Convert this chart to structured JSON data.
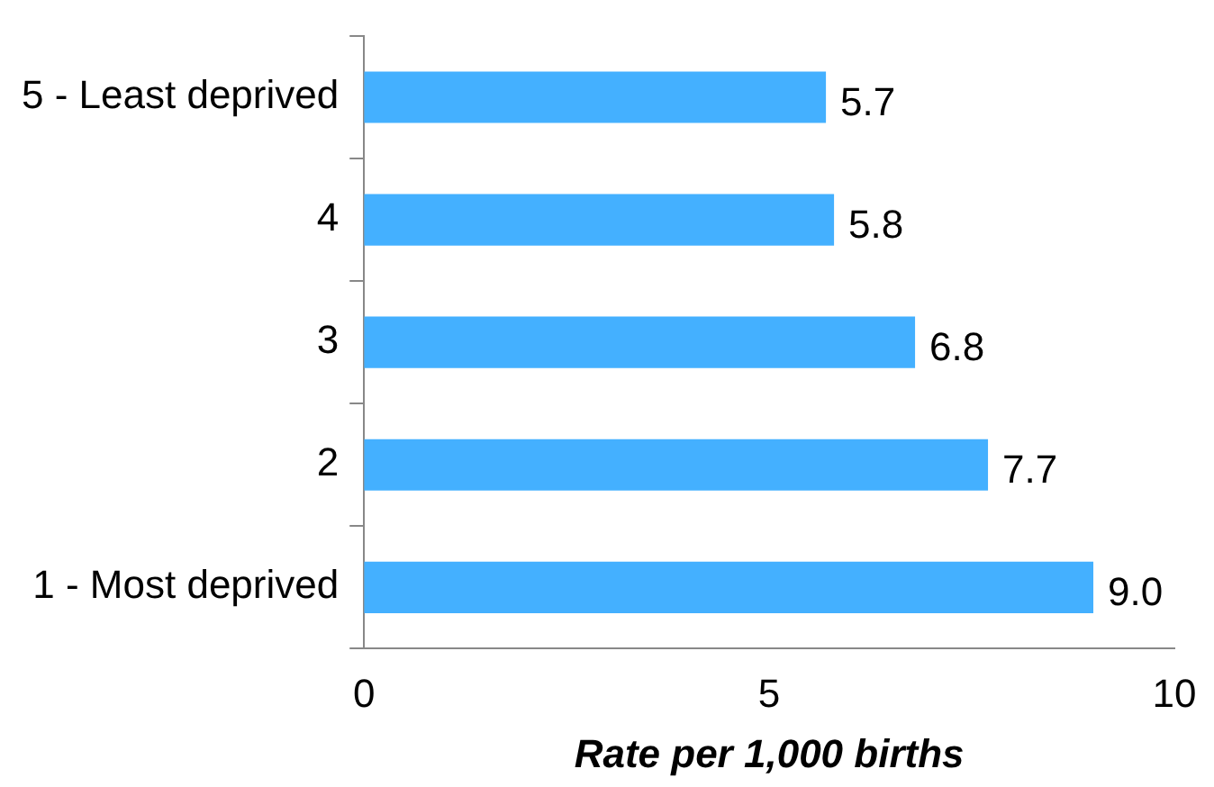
{
  "chart_data": {
    "type": "bar",
    "orientation": "horizontal",
    "xlabel": "Rate per 1,000 births",
    "categories": [
      "5 - Least deprived",
      "4",
      "3",
      "2",
      "1 - Most deprived"
    ],
    "values": [
      5.7,
      5.8,
      6.8,
      7.7,
      9.0
    ],
    "color": "#44b0ff",
    "value_labels": [
      "5.7",
      "5.8",
      "6.8",
      "7.7",
      "9.0"
    ],
    "xlim": [
      0,
      10
    ],
    "xticks": [
      0,
      5,
      10
    ],
    "grid": false,
    "legend": false
  }
}
